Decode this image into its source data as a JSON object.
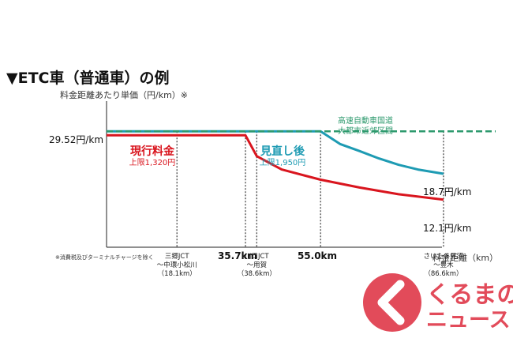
{
  "chart_data": {
    "type": "line",
    "title": "▼ETC車（普通車）の例",
    "ylabel": "料金距離あたり単価（円/km）※",
    "xlabel": "料金距離（km）",
    "footnote": "※消費税及びターミナルチャージを除く",
    "y_tick_label": "29.52円/km",
    "x_tick_labels": [
      "35.7km",
      "55.0km"
    ],
    "ylim": [
      0,
      35
    ],
    "xlim": [
      0,
      100
    ],
    "baseline": {
      "name_lines": [
        "高速自動車国道",
        "大都市近郊区間"
      ],
      "color": "#2e9a6e",
      "x": [
        0,
        100
      ],
      "y": [
        29.52,
        29.52
      ]
    },
    "series": [
      {
        "name": "現行料金",
        "cap_label": "上限1,320円",
        "color": "#d9151e",
        "end_label": "12.1円/km",
        "x": [
          0,
          35.7,
          38.6,
          45,
          55,
          65,
          75,
          86.6
        ],
        "y": [
          28.5,
          28.5,
          23.2,
          19.8,
          17.2,
          15.2,
          13.5,
          12.1
        ]
      },
      {
        "name": "見直し後",
        "cap_label": "上限1,950円",
        "color": "#1e9bb3",
        "end_label": "18.7円/km",
        "x": [
          0,
          55,
          60,
          65,
          70,
          75,
          80,
          86.6
        ],
        "y": [
          29.52,
          29.52,
          26.3,
          24.5,
          22.6,
          21.0,
          19.8,
          18.7
        ]
      }
    ],
    "markers": [
      {
        "x": 18.1,
        "lines": [
          "三郷JCT",
          "〜中環小松川",
          "（18.1km）"
        ]
      },
      {
        "x": 35.7,
        "lines": []
      },
      {
        "x": 38.6,
        "lines": [
          "川口JCT",
          "〜用賀",
          "（38.6km）"
        ]
      },
      {
        "x": 55.0,
        "lines": []
      },
      {
        "x": 86.6,
        "lines": [
          "さいたま見沼",
          "〜豊木",
          "（86.6km）"
        ]
      }
    ]
  },
  "logo": {
    "text_line1": "くるまの",
    "text_line2": "ニュース"
  }
}
